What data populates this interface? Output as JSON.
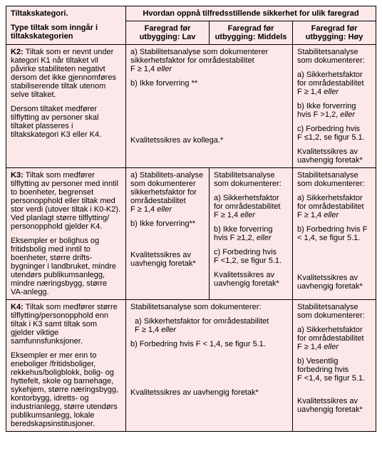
{
  "colors": {
    "cell_bg": "#fce8e8",
    "border": "#000000",
    "text": "#000000"
  },
  "header": {
    "left_title_l1": "Tiltakskategori.",
    "left_title_l2": "Type tiltak som inngår i tiltakskategorien",
    "top_span": "Hvordan oppnå tilfredsstillende sikkerhet for ulik faregrad",
    "c1_l1": "Faregrad før",
    "c1_l2": "utbygging: Lav",
    "c2_l1": "Faregrad før",
    "c2_l2": "utbygging: Middels",
    "c3_l1": "Faregrad før",
    "c3_l2": "utbygging: Høy"
  },
  "k2": {
    "label": "K2:",
    "p1": " Tiltak som er nevnt under kategori K1 når tiltaket vil påvirke stabiliteten negativt dersom det ikke gjennomføres stabiliserende tiltak utenom selve tiltaket.",
    "p2": "Dersom tiltaket medfører tilflytting av personer skal tiltaket plasseres i tiltakskategori K3 eller K4.",
    "ab_a": "a) Stabilitetsanalyse som dokumenterer sikkerhetsfaktor for områdestabilitet",
    "ab_f": "F ≥ 1,4 ",
    "eller": "eller",
    "ab_b": "b) Ikke forverring **",
    "ab_foot": "Kvalitetssikres av kollega.*",
    "r_t": "Stabilitetsanalyse som dokumenterer:",
    "r_a": "a) Sikkerhetsfaktor for områdestabilitet",
    "r_a_f": "F ≥ 1,4 ",
    "r_b": "b) Ikke forverring hvis F >1,2, ",
    "r_c": "c) Forbedring hvis",
    "r_c_f": "F ≤1,2, se figur 5.1.",
    "r_foot": "Kvalitetssikres av uavhengig foretak*"
  },
  "k3": {
    "label": "K3:",
    "p1": " Tiltak som medfører tilflytting av personer med inntil to boenheter, begrenset personopphold eller tiltak med stor verdi (utover tiltak i K0-K2). Ved planlagt større tilflytting/ personopphold gjelder K4.",
    "p2": "Eksempler er bolighus og fritidsbolig med inntil to boenheter, større drifts-bygninger i landbruket, mindre utendørs publikumsanlegg, mindre næringsbygg, større VA-anlegg.",
    "c1_t1": "a) Stabilitets-analyse som dokumenterer sikkerhetsfaktor for områdestabilitet",
    "c1_f": "F ≥ 1,4 ",
    "c1_b": "b) Ikke forverring**",
    "c1_foot": "Kvalitetssikres av uavhengig foretak*",
    "c2_t": "Stabilitetsanalyse som dokumenterer:",
    "c2_a": "a) Sikkerhetsfaktor for områdestabilitet",
    "c2_a_f": "F ≥ 1,4 ",
    "c2_b": "b) Ikke forverring hvis F ≥1,2, ",
    "c2_c": "c) Forbedring hvis",
    "c2_c_f": "F <1,2, se figur 5.1.",
    "c2_foot": "Kvalitetssikres av uavhengig foretak*",
    "c3_t": "Stabilitetsanalyse som dokumenterer:",
    "c3_a": "a) Sikkerhetsfaktor for områdestabilitet",
    "c3_a_f": "F ≥ 1,4 ",
    "c3_b": "b) Forbedring hvis F < 1,4, se figur 5.1.",
    "c3_foot": "Kvalitetssikres av uavhengig foretak*"
  },
  "k4": {
    "label": "K4:",
    "p1": " Tiltak som medfører større tilflytting/personopphold enn tiltak i K3 samt tiltak som gjelder viktige samfunnsfunksjoner.",
    "p2": "Eksempler er mer enn to eneboliger /fritidsboliger, rekkehus/boligblokk, bolig- og hyttefelt, skole og barnehage, sykehjem, større næringsbygg, kontorbygg, idretts- og industrianlegg, større utendørs publikumsanlegg, lokale beredskapsinstitusjoner.",
    "ab_t": "Stabilitetsanalyse som dokumenterer:",
    "ab_a": "a) Sikkerhetsfaktor for områdestabilitet",
    "ab_a_f": "F ≥ 1,4 ",
    "ab_b": "b) Forbedring hvis F < 1,4, se figur 5.1.",
    "ab_foot": "Kvalitetssikres av uavhengig foretak*",
    "r_t": "Stabilitetsanalyse som dokumenterer:",
    "r_a": " a) Sikkerhetsfaktor for områdestabilitet",
    "r_a_f": "F ≥ 1,4 ",
    "r_b": "b) Vesentlig forbedring hvis",
    "r_b_f": "F <1,4, se figur 5.1.",
    "r_foot": "Kvalitetssikres av uavhengig foretak*"
  },
  "common": {
    "eller": "eller"
  }
}
